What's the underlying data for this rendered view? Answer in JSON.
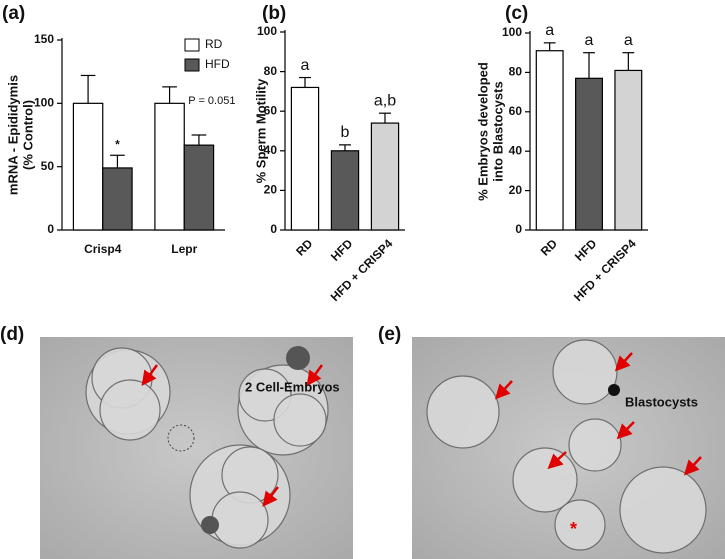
{
  "chart_data": [
    {
      "type": "grouped-bar",
      "panel_label": "(a)",
      "ylabel": [
        "mRNA - Epididymis",
        "(% Control)"
      ],
      "categories": [
        "Crisp4",
        "Lepr"
      ],
      "series": [
        {
          "name": "RD",
          "color": "#ffffff",
          "values": [
            100,
            100
          ],
          "errors": [
            22,
            13
          ]
        },
        {
          "name": "HFD",
          "color": "#595959",
          "values": [
            49,
            67
          ],
          "errors": [
            10,
            8
          ]
        }
      ],
      "ylim": [
        0,
        150
      ],
      "yticks": [
        0,
        50,
        100,
        150
      ],
      "legend": "upper right",
      "annotations": [
        "*",
        "P = 0.051"
      ]
    },
    {
      "type": "bar",
      "panel_label": "(b)",
      "ylabel": [
        "% Sperm Motility"
      ],
      "categories": [
        "RD",
        "HFD",
        "HFD + CRISP4"
      ],
      "values": [
        72,
        40,
        54
      ],
      "errors": [
        5,
        3,
        5
      ],
      "colors": [
        "#ffffff",
        "#595959",
        "#d3d3d3"
      ],
      "significance": [
        "a",
        "b",
        "a,b"
      ],
      "ylim": [
        0,
        100
      ],
      "yticks": [
        0,
        20,
        40,
        60,
        80,
        100
      ]
    },
    {
      "type": "bar",
      "panel_label": "(c)",
      "ylabel": [
        "% Embryos developed",
        "into Blastocysts"
      ],
      "categories": [
        "RD",
        "HFD",
        "HFD + CRISP4"
      ],
      "values": [
        91,
        77,
        81
      ],
      "errors": [
        4,
        13,
        9
      ],
      "colors": [
        "#ffffff",
        "#595959",
        "#d3d3d3"
      ],
      "significance": [
        "a",
        "a",
        "a"
      ],
      "ylim": [
        0,
        100
      ],
      "yticks": [
        0,
        20,
        40,
        60,
        80,
        100
      ]
    }
  ],
  "images": [
    {
      "label": "(d)",
      "caption": "2 Cell-Embryos"
    },
    {
      "label": "(e)",
      "caption": "Blastocysts"
    }
  ]
}
